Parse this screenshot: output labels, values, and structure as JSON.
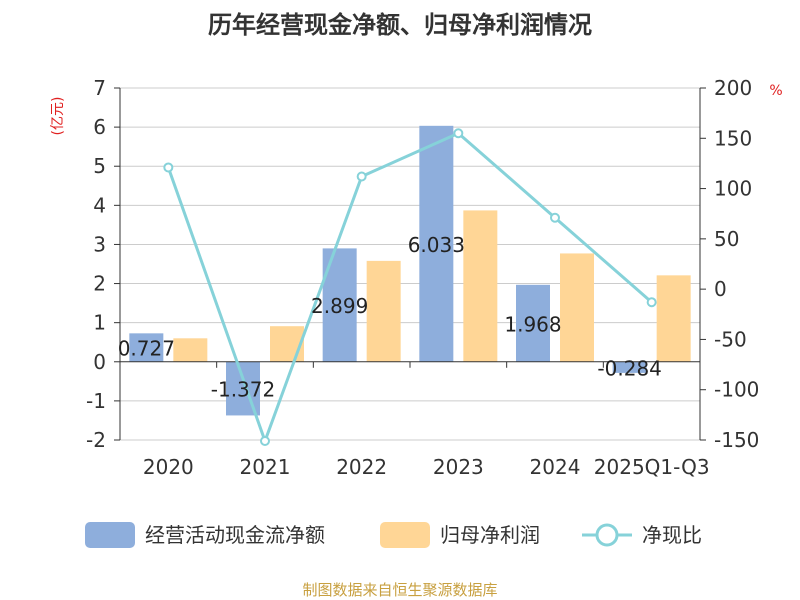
{
  "chart_data": {
    "type": "bar",
    "title": "历年经营现金净额、归母净利润情况",
    "categories": [
      "2020",
      "2021",
      "2022",
      "2023",
      "2024",
      "2025Q1-Q3"
    ],
    "series": [
      {
        "name": "经营活动现金流净额",
        "type": "bar",
        "axis": "left",
        "color": "#8eaedc",
        "values": [
          0.727,
          -1.372,
          2.899,
          6.033,
          1.968,
          -0.284
        ],
        "labels": [
          "0.727",
          "-1.372",
          "2.899",
          "6.033",
          "1.968",
          "-0.284"
        ]
      },
      {
        "name": "归母净利润",
        "type": "bar",
        "axis": "left",
        "color": "#ffd696",
        "values": [
          0.6,
          0.91,
          2.58,
          3.87,
          2.77,
          2.21
        ]
      },
      {
        "name": "净现比",
        "type": "line",
        "axis": "right",
        "color": "#86d2d9",
        "values": [
          121,
          -151,
          112,
          155,
          71,
          -13
        ]
      }
    ],
    "y_left": {
      "label": "(亿元)",
      "min": -2,
      "max": 7,
      "ticks": [
        7,
        6,
        5,
        4,
        3,
        2,
        1,
        0,
        -1,
        -2
      ]
    },
    "y_right": {
      "label": "%",
      "min": -150,
      "max": 200,
      "ticks": [
        200,
        150,
        100,
        50,
        0,
        -50,
        -100,
        -150
      ]
    },
    "legend_position": "bottom",
    "grid": true,
    "source": "制图数据来自恒生聚源数据库",
    "colors": {
      "title": "#333333",
      "axis_unit": "#e02020",
      "source": "#c8a040",
      "grid": "#cccccc",
      "text": "#333333"
    }
  }
}
